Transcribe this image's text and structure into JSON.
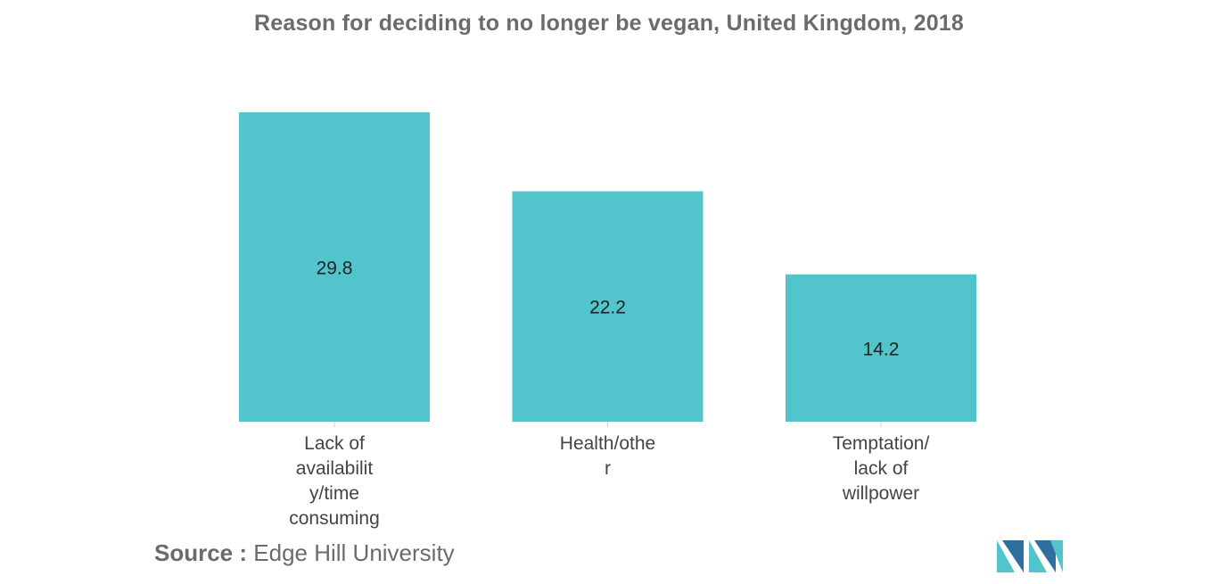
{
  "chart_data": {
    "type": "bar",
    "title": "Reason for deciding to no longer be vegan, United Kingdom, 2018",
    "categories": [
      [
        "Lack of",
        "availabilit",
        "y/time",
        "consuming"
      ],
      [
        "Health/othe",
        "r"
      ],
      [
        "Temptation/",
        "lack of",
        "willpower"
      ]
    ],
    "values": [
      29.8,
      22.2,
      14.2
    ],
    "value_labels": [
      "29.8",
      "22.2",
      "14.2"
    ],
    "xlabel": "",
    "ylabel": "",
    "ylim": [
      0,
      29.8
    ],
    "grid": false,
    "bar_color": "#52c4cb"
  },
  "source": {
    "label": "Source :",
    "text": "Edge Hill University"
  },
  "logo": {
    "name": "mordor-intelligence-logo",
    "colors": [
      "#2f6f9f",
      "#52c4cb"
    ]
  }
}
